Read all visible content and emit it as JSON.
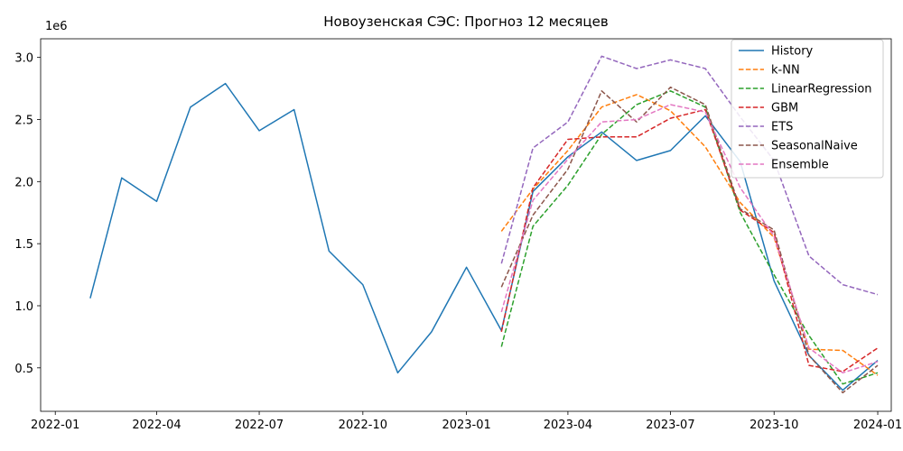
{
  "chart_data": {
    "type": "line",
    "title": "Новоузенская СЭС: Прогноз 12 месяцев",
    "xlabel": "",
    "ylabel": "",
    "y_multiplier_label": "1e6",
    "ylim": [
      0.15,
      3.15
    ],
    "xlim": [
      "2021-12-19",
      "2024-01-13"
    ],
    "x_ticks": [
      {
        "date": "2022-01-01",
        "label": "2022-01"
      },
      {
        "date": "2022-04-01",
        "label": "2022-04"
      },
      {
        "date": "2022-07-01",
        "label": "2022-07"
      },
      {
        "date": "2022-10-01",
        "label": "2022-10"
      },
      {
        "date": "2023-01-01",
        "label": "2023-01"
      },
      {
        "date": "2023-04-01",
        "label": "2023-04"
      },
      {
        "date": "2023-07-01",
        "label": "2023-07"
      },
      {
        "date": "2023-10-01",
        "label": "2023-10"
      },
      {
        "date": "2024-01-01",
        "label": "2024-01"
      }
    ],
    "y_ticks": [
      {
        "value": 0.5,
        "label": "0.5"
      },
      {
        "value": 1.0,
        "label": "1.0"
      },
      {
        "value": 1.5,
        "label": "1.5"
      },
      {
        "value": 2.0,
        "label": "2.0"
      },
      {
        "value": 2.5,
        "label": "2.5"
      },
      {
        "value": 3.0,
        "label": "3.0"
      }
    ],
    "grid": false,
    "legend_position": "top-right",
    "forecast_x": [
      "2023-02-01",
      "2023-03-01",
      "2023-04-01",
      "2023-05-01",
      "2023-06-01",
      "2023-07-01",
      "2023-08-01",
      "2023-09-01",
      "2023-10-01",
      "2023-11-01",
      "2023-12-01",
      "2024-01-01"
    ],
    "series": [
      {
        "name": "History",
        "color": "#1f77b4",
        "dashed": false,
        "x": [
          "2022-02-01",
          "2022-03-01",
          "2022-04-01",
          "2022-05-01",
          "2022-06-01",
          "2022-07-01",
          "2022-08-01",
          "2022-09-01",
          "2022-10-01",
          "2022-11-01",
          "2022-12-01",
          "2023-01-01",
          "2023-02-01",
          "2023-03-01",
          "2023-04-01",
          "2023-05-01",
          "2023-06-01",
          "2023-07-01",
          "2023-08-01",
          "2023-09-01",
          "2023-10-01",
          "2023-11-01",
          "2023-12-01",
          "2024-01-01"
        ],
        "values": [
          1.06,
          2.03,
          1.84,
          2.6,
          2.79,
          2.41,
          2.58,
          1.44,
          1.17,
          0.46,
          0.79,
          1.31,
          0.8,
          1.92,
          2.2,
          2.4,
          2.17,
          2.25,
          2.53,
          2.16,
          1.2,
          0.6,
          0.32,
          0.56
        ]
      },
      {
        "name": "k-NN",
        "color": "#ff7f0e",
        "dashed": true,
        "values": [
          1.6,
          1.94,
          2.25,
          2.6,
          2.7,
          2.57,
          2.28,
          1.83,
          1.55,
          0.65,
          0.64,
          0.44
        ]
      },
      {
        "name": "LinearRegression",
        "color": "#2ca02c",
        "dashed": true,
        "values": [
          0.67,
          1.64,
          1.97,
          2.38,
          2.62,
          2.73,
          2.6,
          1.75,
          1.25,
          0.76,
          0.37,
          0.46
        ]
      },
      {
        "name": "GBM",
        "color": "#d62728",
        "dashed": true,
        "values": [
          0.79,
          1.95,
          2.34,
          2.36,
          2.36,
          2.51,
          2.58,
          1.77,
          1.59,
          0.52,
          0.47,
          0.66
        ]
      },
      {
        "name": "ETS",
        "color": "#9467bd",
        "dashed": true,
        "values": [
          1.34,
          2.27,
          2.48,
          3.01,
          2.91,
          2.98,
          2.91,
          2.52,
          2.17,
          1.4,
          1.17,
          1.09
        ]
      },
      {
        "name": "SeasonalNaive",
        "color": "#8c564b",
        "dashed": true,
        "values": [
          1.15,
          1.73,
          2.1,
          2.73,
          2.48,
          2.76,
          2.62,
          1.78,
          1.61,
          0.6,
          0.3,
          0.52
        ]
      },
      {
        "name": "Ensemble",
        "color": "#e377c2",
        "dashed": true,
        "values": [
          0.95,
          1.85,
          2.18,
          2.48,
          2.5,
          2.62,
          2.56,
          1.95,
          1.56,
          0.66,
          0.46,
          0.55
        ]
      }
    ]
  }
}
